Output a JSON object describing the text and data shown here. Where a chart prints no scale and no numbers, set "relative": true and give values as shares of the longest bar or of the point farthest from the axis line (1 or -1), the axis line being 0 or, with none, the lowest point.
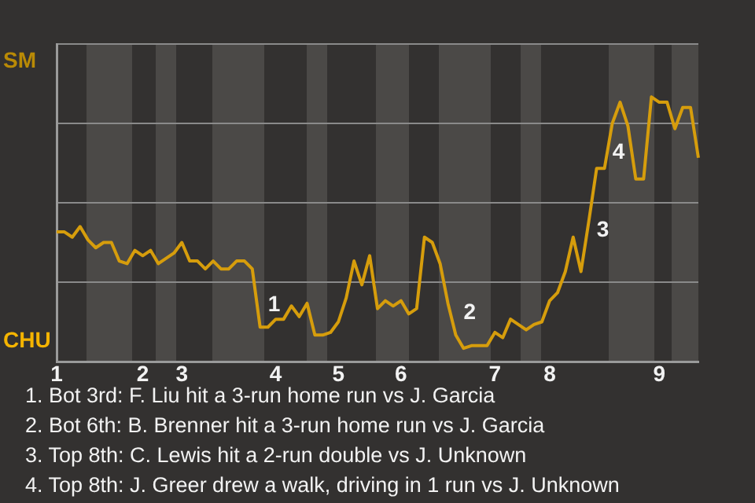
{
  "chart_data": {
    "type": "line",
    "relative": true,
    "grid": "y",
    "marker": "none",
    "line_style": "solid",
    "categories": [
      "1",
      null,
      null,
      null,
      null,
      null,
      null,
      null,
      null,
      null,
      null,
      "2",
      null,
      null,
      null,
      null,
      "3",
      null,
      null,
      null,
      null,
      null,
      null,
      null,
      null,
      null,
      null,
      null,
      "4",
      null,
      null,
      null,
      null,
      null,
      null,
      null,
      "5",
      null,
      null,
      null,
      null,
      null,
      null,
      null,
      "6",
      null,
      null,
      null,
      null,
      null,
      null,
      null,
      null,
      null,
      null,
      null,
      "7",
      null,
      null,
      null,
      null,
      null,
      null,
      "8",
      null,
      null,
      null,
      null,
      null,
      null,
      null,
      null,
      null,
      null,
      null,
      null,
      null,
      "9",
      null,
      null,
      null,
      null,
      null
    ],
    "series": [
      {
        "color": "#d69d0c",
        "values": [
          0.49,
          0.49,
          0.47,
          0.51,
          0.46,
          0.43,
          0.45,
          0.45,
          0.38,
          0.37,
          0.42,
          0.4,
          0.42,
          0.37,
          0.39,
          0.41,
          0.45,
          0.38,
          0.38,
          0.35,
          0.38,
          0.35,
          0.35,
          0.38,
          0.38,
          0.35,
          0.13,
          0.13,
          0.16,
          0.16,
          0.21,
          0.17,
          0.22,
          0.1,
          0.1,
          0.11,
          0.15,
          0.24,
          0.38,
          0.29,
          0.4,
          0.2,
          0.23,
          0.21,
          0.23,
          0.18,
          0.2,
          0.47,
          0.45,
          0.37,
          0.22,
          0.1,
          0.05,
          0.06,
          0.06,
          0.06,
          0.11,
          0.09,
          0.16,
          0.14,
          0.12,
          0.14,
          0.15,
          0.23,
          0.26,
          0.34,
          0.47,
          0.34,
          0.53,
          0.73,
          0.73,
          0.9,
          0.98,
          0.89,
          0.69,
          0.69,
          1,
          0.98,
          0.98,
          0.88,
          0.96,
          0.96,
          0.77
        ]
      }
    ],
    "annotations": [
      "SM",
      "CHU",
      "1",
      "2",
      "3",
      "4",
      "1. Bot 3rd: F. Liu hit a 3-run home run vs J. Garcia",
      "2. Bot 6th: B. Brenner hit a 3-run home run vs J. Garcia",
      "3. Top 8th: C. Lewis hit a 2-run double vs J. Unknown",
      "4. Top 8th: J. Greer drew a walk, driving in 1 run vs J. Unknown"
    ]
  }
}
